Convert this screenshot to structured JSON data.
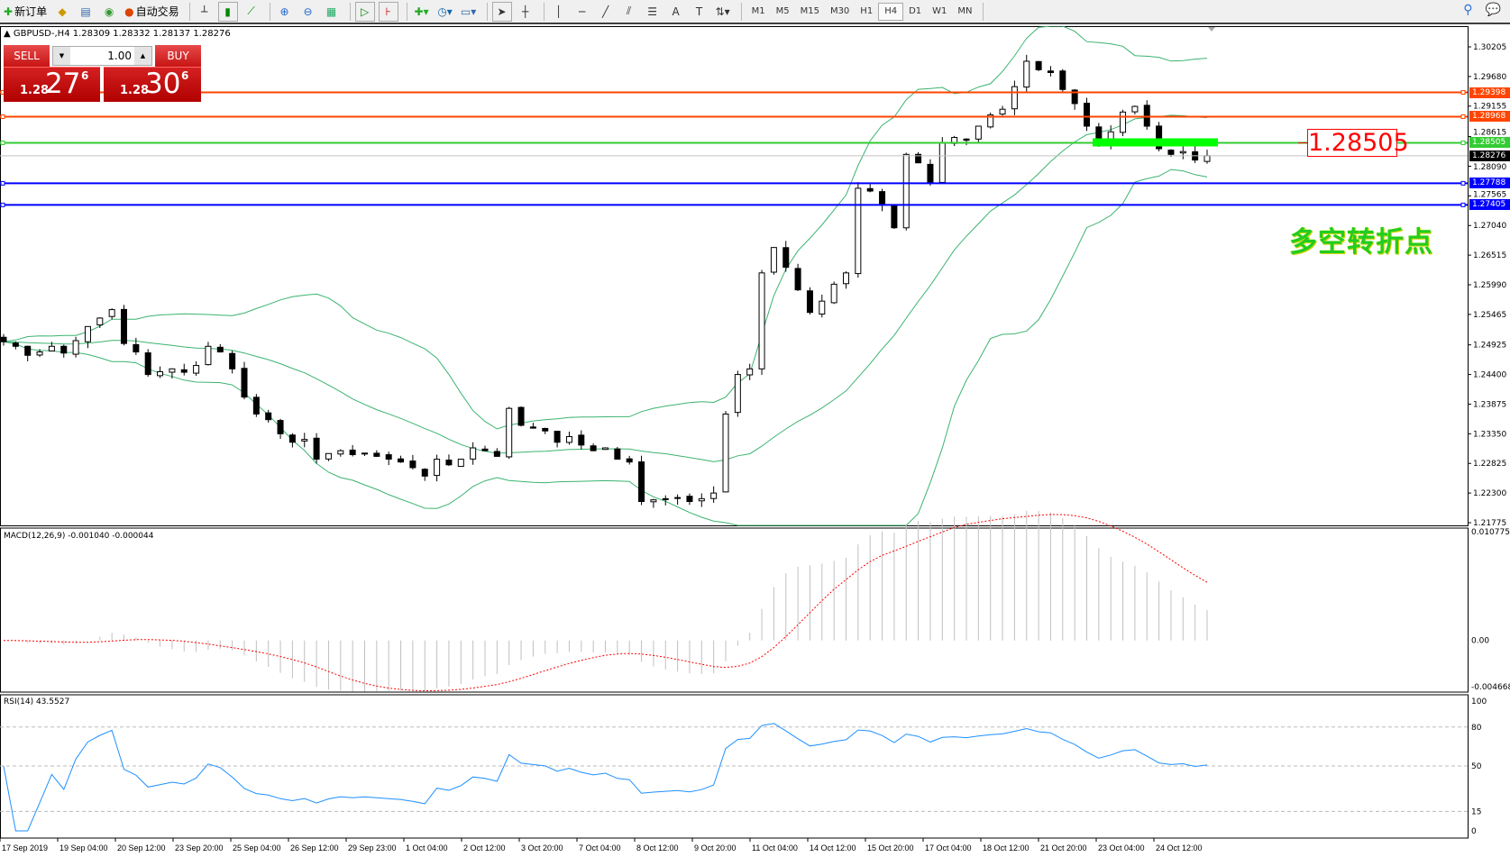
{
  "toolbar": {
    "new_order": "新订单",
    "auto_trading": "自动交易",
    "timeframes": [
      "M1",
      "M5",
      "M15",
      "M30",
      "H1",
      "H4",
      "D1",
      "W1",
      "MN"
    ],
    "active_timeframe": "H4",
    "icons": [
      "new-order-icon",
      "market-watch-icon",
      "navigator-icon",
      "signals-icon",
      "auto-trading-icon",
      "bar-chart-icon",
      "candlestick-icon",
      "line-chart-icon",
      "zoom-in-icon",
      "zoom-out-icon",
      "tile-windows-icon",
      "autoscroll-icon",
      "chart-shift-icon",
      "indicators-icon",
      "periods-icon",
      "templates-icon",
      "cursor-icon",
      "crosshair-icon",
      "vertical-line-icon",
      "horizontal-line-icon",
      "trendline-icon",
      "equidistant-channel-icon",
      "fibonacci-icon",
      "text-icon",
      "text-label-icon",
      "arrows-icon",
      "search-icon",
      "chat-icon"
    ]
  },
  "chart": {
    "symbol_info": "GBPUSD-,H4  1.28309 1.28332 1.28137 1.28276",
    "trade_panel": {
      "sell_label": "SELL",
      "buy_label": "BUY",
      "volume": "1.00",
      "sell_price": {
        "prefix": "1.28",
        "big": "27",
        "sup": "6"
      },
      "buy_price": {
        "prefix": "1.28",
        "big": "30",
        "sup": "6"
      }
    },
    "price_axis": [
      "1.30205",
      "1.29680",
      "1.29155",
      "1.28615",
      "1.28090",
      "1.27565",
      "1.27040",
      "1.26515",
      "1.25990",
      "1.25465",
      "1.24925",
      "1.24400",
      "1.23875",
      "1.23350",
      "1.22825",
      "1.22300",
      "1.21775"
    ],
    "horizontal_lines": [
      {
        "price": "1.29398",
        "color": "#ff4500"
      },
      {
        "price": "1.28968",
        "color": "#ff4500"
      },
      {
        "price": "1.28505",
        "color": "#33cc33"
      },
      {
        "price": "1.27788",
        "color": "#0000ff"
      },
      {
        "price": "1.27405",
        "color": "#0000ff"
      }
    ],
    "current_price": "1.28276",
    "marker_label": "1.28505",
    "annotation": "多空转折点",
    "bollinger_color": "#3cb371",
    "closes": [
      1.2498,
      1.249,
      1.2474,
      1.248,
      1.249,
      1.2478,
      1.25,
      1.2525,
      1.254,
      1.2555,
      1.2495,
      1.248,
      1.244,
      1.2445,
      1.245,
      1.2444,
      1.2456,
      1.249,
      1.248,
      1.245,
      1.24,
      1.237,
      1.236,
      1.2335,
      1.232,
      1.2325,
      1.229,
      1.23,
      1.2305,
      1.2298,
      1.23,
      1.2295,
      1.229,
      1.2285,
      1.2275,
      1.226,
      1.229,
      1.228,
      1.229,
      1.231,
      1.2305,
      1.2295,
      1.238,
      1.235,
      1.2345,
      1.234,
      1.232,
      1.233,
      1.2315,
      1.2305,
      1.231,
      1.229,
      1.2285,
      1.2215,
      1.2218,
      1.222,
      1.2222,
      1.2215,
      1.222,
      1.223,
      1.237,
      1.244,
      1.245,
      1.262,
      1.2665,
      1.263,
      1.259,
      1.255,
      1.257,
      1.26,
      1.262,
      1.277,
      1.2765,
      1.274,
      1.27,
      1.283,
      1.2815,
      1.278,
      1.285,
      1.286,
      1.2855,
      1.288,
      1.29,
      1.291,
      1.295,
      1.2995,
      1.298,
      1.2975,
      1.2945,
      1.292,
      1.288,
      1.2845,
      1.287,
      1.2905,
      1.2915,
      1.288,
      1.284,
      1.283,
      1.2835,
      1.282,
      1.28276
    ]
  },
  "macd": {
    "label": "MACD(12,26,9) -0.001040 -0.000044",
    "axis": [
      "0.010775",
      "0.00",
      "-0.004668"
    ],
    "signal_color": "#ff0000"
  },
  "rsi": {
    "label": "RSI(14) 43.5527",
    "axis": [
      "100",
      "80",
      "50",
      "15",
      "0"
    ],
    "line_color": "#1e90ff"
  },
  "time_axis": [
    "17 Sep 2019",
    "19 Sep 04:00",
    "20 Sep 12:00",
    "23 Sep 20:00",
    "25 Sep 04:00",
    "26 Sep 12:00",
    "29 Sep 23:00",
    "1 Oct 04:00",
    "2 Oct 12:00",
    "3 Oct 20:00",
    "7 Oct 04:00",
    "8 Oct 12:00",
    "9 Oct 20:00",
    "11 Oct 04:00",
    "14 Oct 12:00",
    "15 Oct 20:00",
    "17 Oct 04:00",
    "18 Oct 12:00",
    "21 Oct 20:00",
    "23 Oct 04:00",
    "24 Oct 12:00"
  ]
}
